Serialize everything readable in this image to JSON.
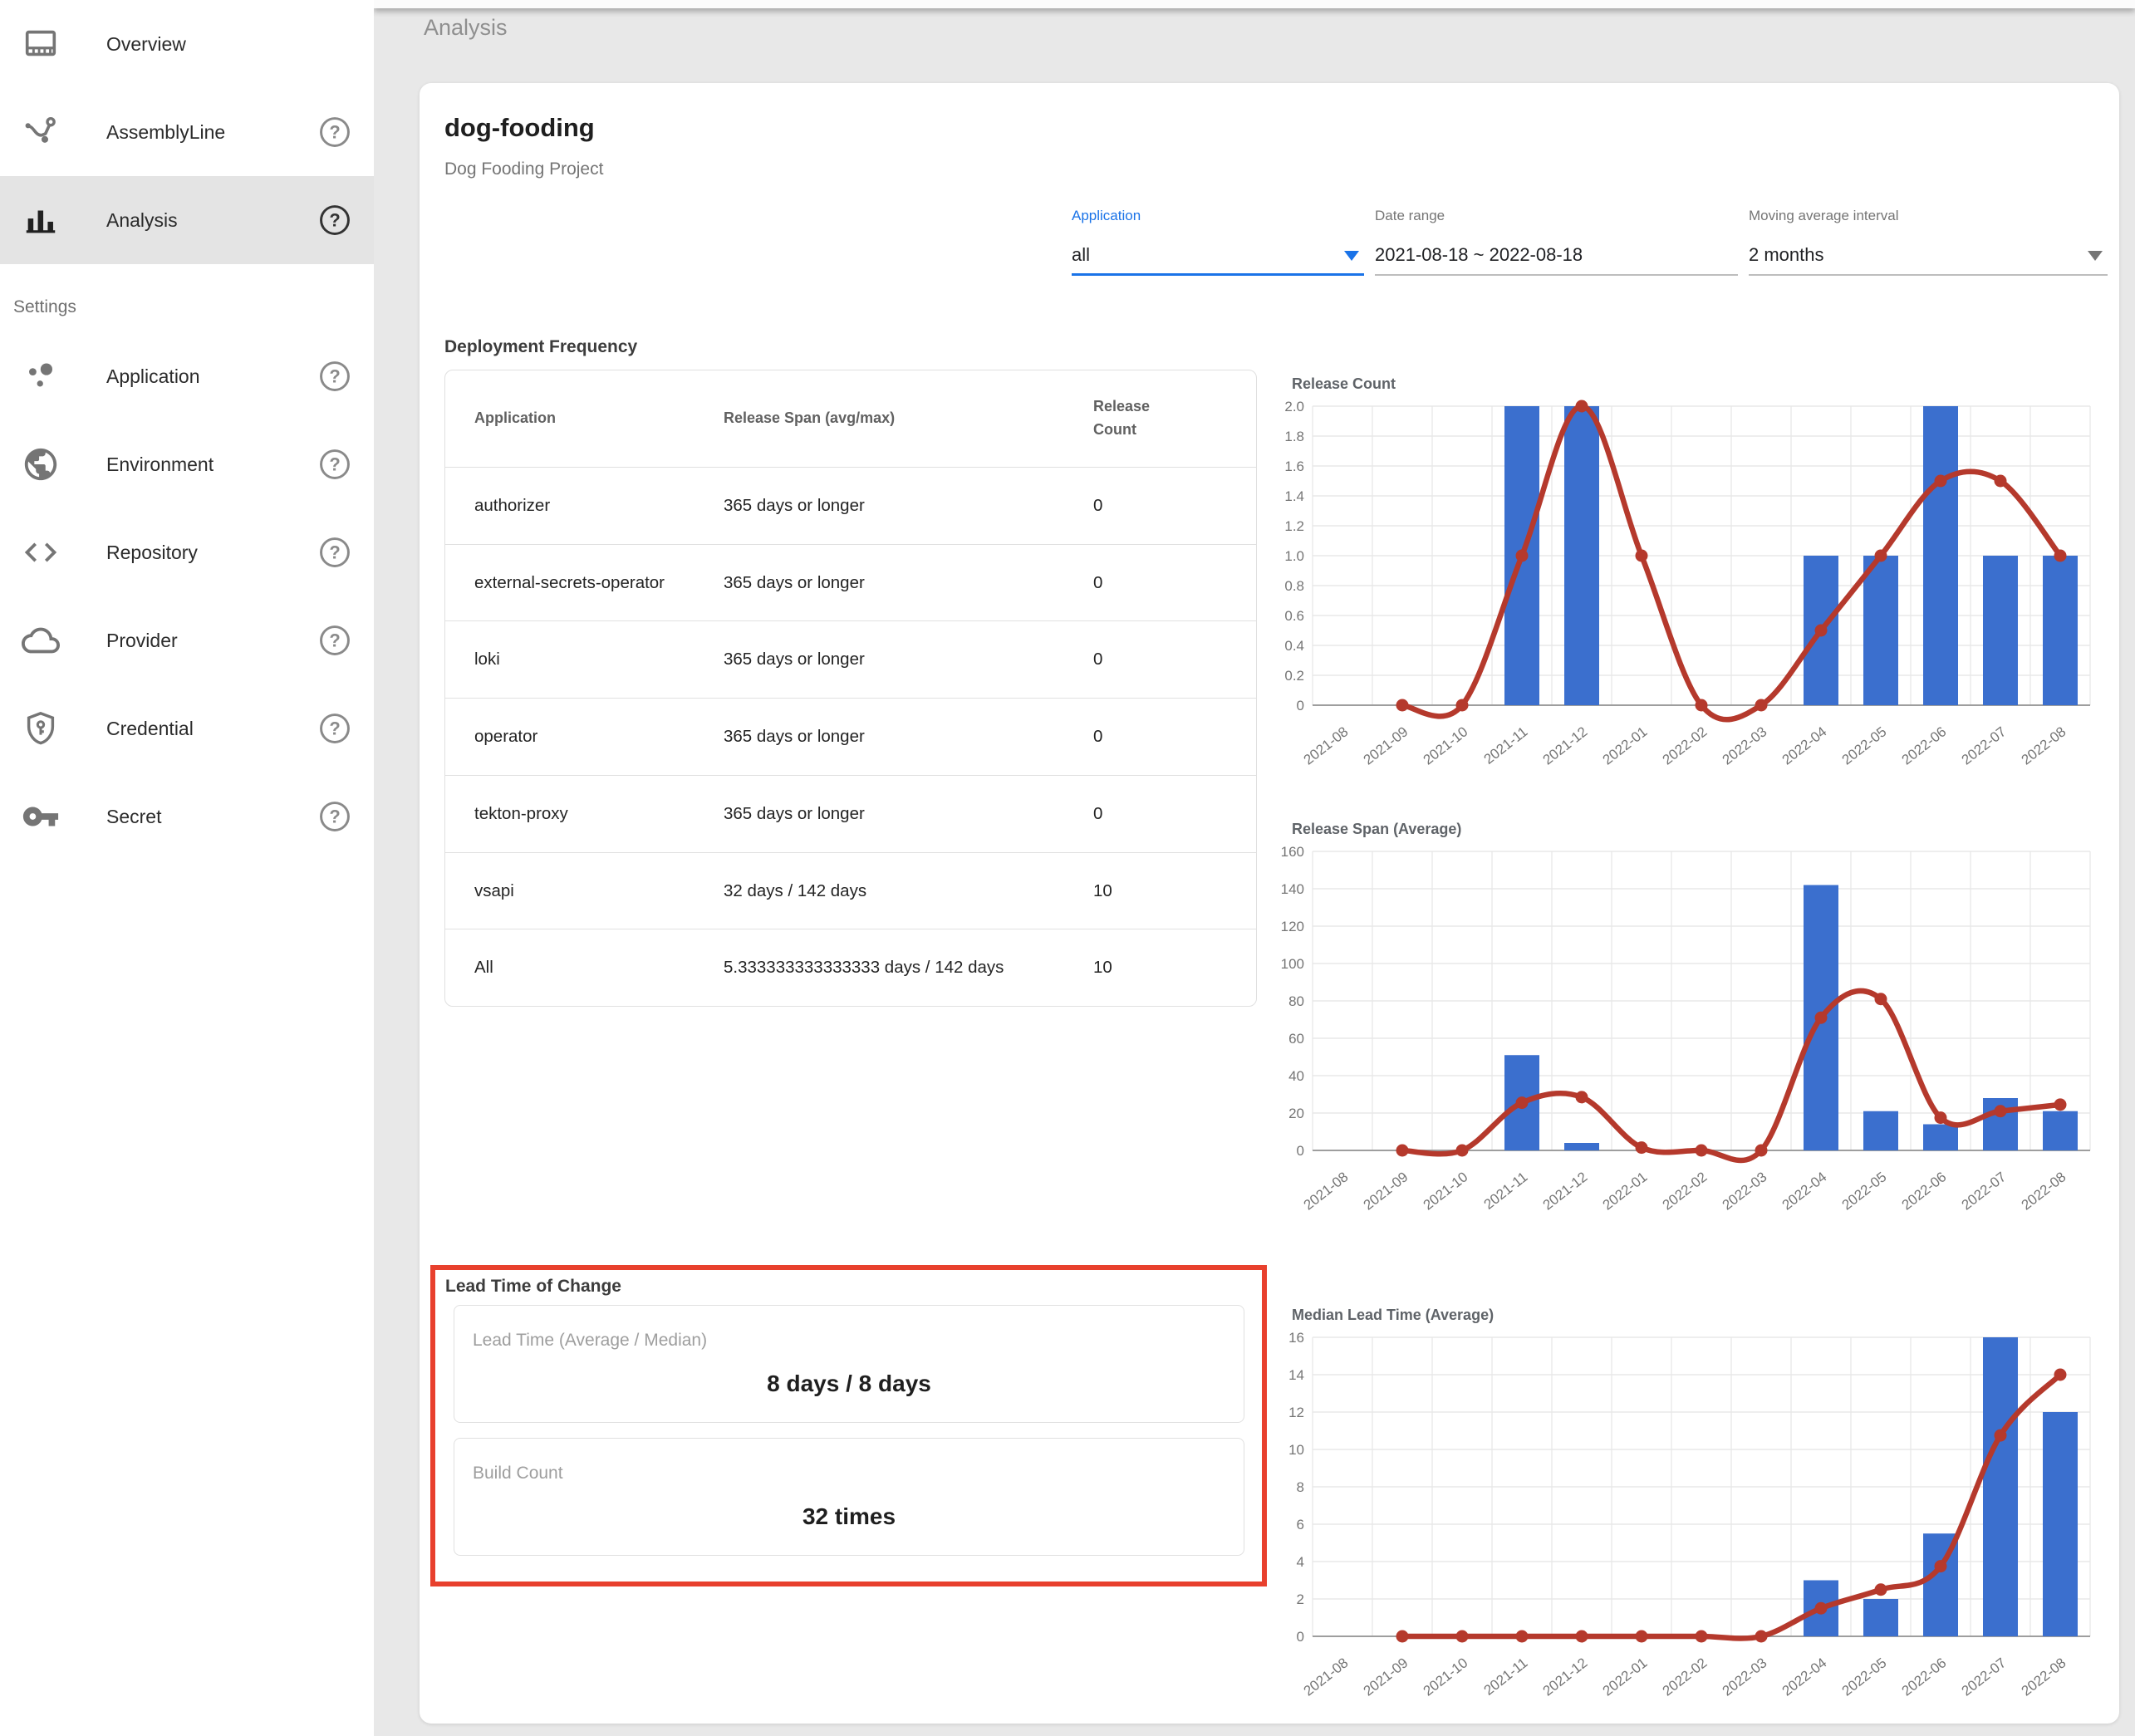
{
  "page_header": {
    "title": "Analysis"
  },
  "sidebar": {
    "settings_label": "Settings",
    "items": [
      {
        "label": "Overview",
        "icon": "overview-icon",
        "help": false,
        "selected": false
      },
      {
        "label": "AssemblyLine",
        "icon": "assemblyline-icon",
        "help": true,
        "selected": false
      },
      {
        "label": "Analysis",
        "icon": "analysis-icon",
        "help": true,
        "selected": true
      }
    ],
    "settings_items": [
      {
        "label": "Application",
        "icon": "application-icon",
        "help": true
      },
      {
        "label": "Environment",
        "icon": "environment-icon",
        "help": true
      },
      {
        "label": "Repository",
        "icon": "repository-icon",
        "help": true
      },
      {
        "label": "Provider",
        "icon": "provider-icon",
        "help": true
      },
      {
        "label": "Credential",
        "icon": "credential-icon",
        "help": true
      },
      {
        "label": "Secret",
        "icon": "secret-icon",
        "help": true
      }
    ]
  },
  "project": {
    "name": "dog-fooding",
    "description": "Dog Fooding Project"
  },
  "filters": {
    "application": {
      "label": "Application",
      "value": "all"
    },
    "date_range": {
      "label": "Date range",
      "value": "2021-08-18 ~ 2022-08-18"
    },
    "moving_average": {
      "label": "Moving average interval",
      "value": "2 months"
    }
  },
  "deployment_frequency": {
    "title": "Deployment Frequency",
    "columns": [
      "Application",
      "Release Span (avg/max)",
      "Release Count"
    ],
    "rows": [
      [
        "authorizer",
        "365 days or longer",
        "0"
      ],
      [
        "external-secrets-operator",
        "365 days or longer",
        "0"
      ],
      [
        "loki",
        "365 days or longer",
        "0"
      ],
      [
        "operator",
        "365 days or longer",
        "0"
      ],
      [
        "tekton-proxy",
        "365 days or longer",
        "0"
      ],
      [
        "vsapi",
        "32 days / 142 days",
        "10"
      ],
      [
        "All",
        "5.333333333333333 days / 142 days",
        "10"
      ]
    ]
  },
  "lead_time_of_change": {
    "title": "Lead Time of Change",
    "cards": [
      {
        "label": "Lead Time (Average / Median)",
        "value": "8 days / 8 days"
      },
      {
        "label": "Build Count",
        "value": "32 times"
      }
    ]
  },
  "colors": {
    "bar": "#3b6fce",
    "line": "#b5392c",
    "accent_blue": "#1a73e8",
    "highlight_red": "#e8402d",
    "grid": "#e3e3e3",
    "axis": "#9e9e9e"
  },
  "chart_data": [
    {
      "type": "bar",
      "name": "release-count-chart",
      "title": "Release Count",
      "categories": [
        "2021-08",
        "2021-09",
        "2021-10",
        "2021-11",
        "2021-12",
        "2022-01",
        "2022-02",
        "2022-03",
        "2022-04",
        "2022-05",
        "2022-06",
        "2022-07",
        "2022-08"
      ],
      "series": [
        {
          "name": "release count (bars)",
          "type": "bar",
          "values": [
            0,
            0,
            0,
            2,
            2,
            0,
            0,
            0,
            1,
            1,
            2,
            1,
            1
          ]
        },
        {
          "name": "moving average (line)",
          "type": "line",
          "values": [
            null,
            0,
            0,
            1,
            2,
            1,
            0,
            0,
            0.5,
            1,
            1.5,
            1.5,
            1
          ]
        }
      ],
      "ylim": [
        0,
        2
      ],
      "ytick_step": 0.2,
      "ytick_decimals": 1,
      "grid": "on",
      "legend": "none"
    },
    {
      "type": "bar",
      "name": "release-span-chart",
      "title": "Release Span (Average)",
      "categories": [
        "2021-08",
        "2021-09",
        "2021-10",
        "2021-11",
        "2021-12",
        "2022-01",
        "2022-02",
        "2022-03",
        "2022-04",
        "2022-05",
        "2022-06",
        "2022-07",
        "2022-08"
      ],
      "series": [
        {
          "name": "release span (bars)",
          "type": "bar",
          "values": [
            0,
            0,
            0,
            51,
            4,
            0,
            0,
            0,
            142,
            21,
            14,
            28,
            21
          ]
        },
        {
          "name": "moving average (line)",
          "type": "line",
          "values": [
            null,
            0,
            0,
            25.5,
            28.5,
            1.5,
            0,
            0,
            71,
            81,
            17.5,
            21,
            24.5
          ]
        }
      ],
      "ylim": [
        0,
        160
      ],
      "ytick_step": 20,
      "ytick_decimals": 0,
      "grid": "on",
      "legend": "none"
    },
    {
      "type": "bar",
      "name": "median-lead-time-chart",
      "title": "Median Lead Time (Average)",
      "categories": [
        "2021-08",
        "2021-09",
        "2021-10",
        "2021-11",
        "2021-12",
        "2022-01",
        "2022-02",
        "2022-03",
        "2022-04",
        "2022-05",
        "2022-06",
        "2022-07",
        "2022-08"
      ],
      "series": [
        {
          "name": "median lead time (bars)",
          "type": "bar",
          "values": [
            0,
            0,
            0,
            0,
            0,
            0,
            0,
            0,
            3,
            2,
            5.5,
            16,
            12
          ]
        },
        {
          "name": "moving average (line)",
          "type": "line",
          "values": [
            null,
            0,
            0,
            0,
            0,
            0,
            0,
            0,
            1.5,
            2.5,
            3.75,
            10.75,
            14
          ]
        }
      ],
      "ylim": [
        0,
        16
      ],
      "ytick_step": 2,
      "ytick_decimals": 0,
      "grid": "on",
      "legend": "none"
    }
  ]
}
